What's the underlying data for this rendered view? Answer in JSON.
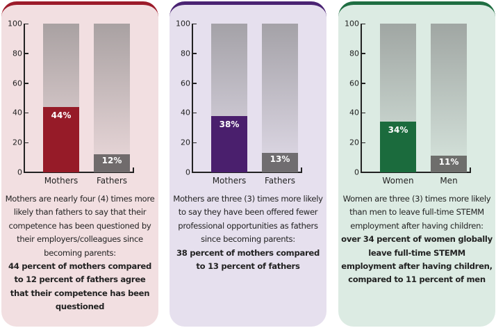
{
  "chart_data": [
    {
      "type": "bar",
      "ylim": [
        0,
        100
      ],
      "yticks": [
        0,
        20,
        40,
        60,
        80,
        100
      ],
      "categories": [
        "Mothers",
        "Fathers"
      ],
      "values": [
        44,
        12
      ],
      "value_labels": [
        "44%",
        "12%"
      ],
      "colors": [
        "#961b28",
        "#706b6c"
      ],
      "panel_color": "#f2dfe1",
      "accent": "#9c1b2a",
      "caption": "Mothers are nearly four (4) times more likely than fathers to say that their competence has been questioned by their employers/colleagues since becoming parents:",
      "caption_bold": "44 percent of mothers compared to 12 percent of fathers agree that their competence has been questioned"
    },
    {
      "type": "bar",
      "ylim": [
        0,
        100
      ],
      "yticks": [
        0,
        20,
        40,
        60,
        80,
        100
      ],
      "categories": [
        "Mothers",
        "Fathers"
      ],
      "values": [
        38,
        13
      ],
      "value_labels": [
        "38%",
        "13%"
      ],
      "colors": [
        "#4a1f6d",
        "#706d70"
      ],
      "panel_color": "#e6e0ee",
      "accent": "#4a2373",
      "caption": "Mothers are three (3) times more likely to say they have been offered fewer professional opportunities as fathers since becoming parents:",
      "caption_bold": "38 percent of mothers compared to 13 percent of fathers"
    },
    {
      "type": "bar",
      "ylim": [
        0,
        100
      ],
      "yticks": [
        0,
        20,
        40,
        60,
        80,
        100
      ],
      "categories": [
        "Women",
        "Men"
      ],
      "values": [
        34,
        11
      ],
      "value_labels": [
        "34%",
        "11%"
      ],
      "colors": [
        "#1b6b3d",
        "#6e6e6c"
      ],
      "panel_color": "#dcebe3",
      "accent": "#1f6e42",
      "caption": "Women are three (3) times more likely than men to leave full-time STEMM employment after having children:",
      "caption_bold": "over 34 percent of women globally leave full-time STEMM employment after having children, compared to 11 percent of men"
    }
  ]
}
